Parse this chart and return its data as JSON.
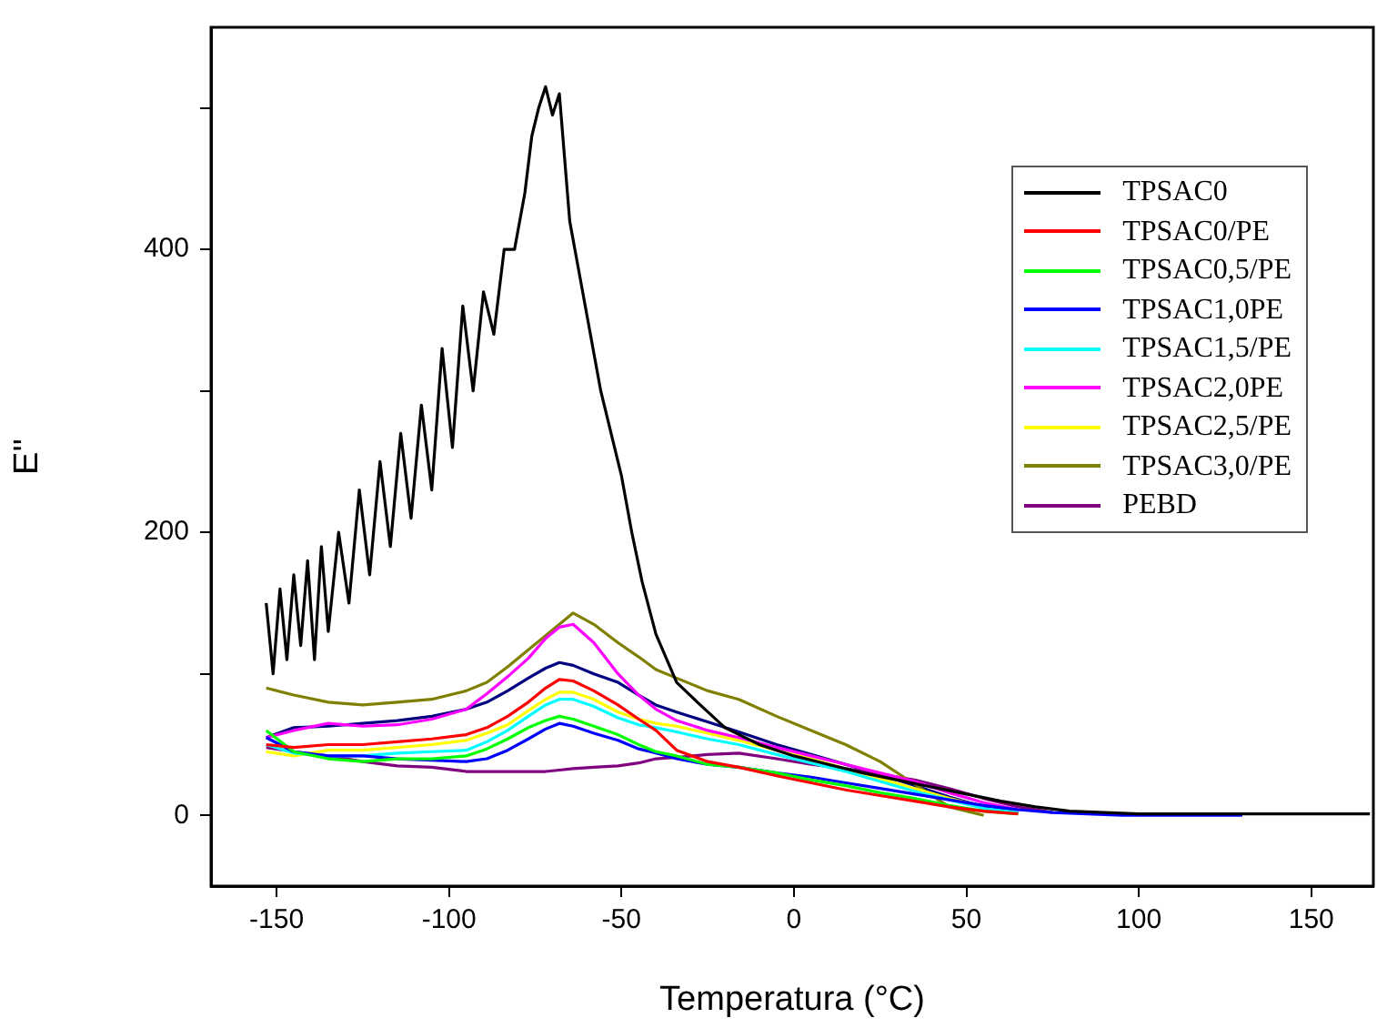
{
  "chart_data": {
    "type": "line",
    "xlabel": "Temperatura (°C)",
    "ylabel": "E''",
    "x": [
      -153,
      -145,
      -135,
      -125,
      -115,
      -105,
      -95,
      -89,
      -83,
      -77,
      -72,
      -68,
      -64,
      -58,
      -51,
      -45,
      -40,
      -34,
      -25,
      -16,
      -5,
      5,
      15,
      25,
      35,
      45,
      55,
      65,
      75,
      85,
      95,
      110,
      130
    ],
    "series": [
      {
        "name": "TPSAC0",
        "color": "#000000",
        "x": [
          -153,
          -151,
          -149,
          -147,
          -145,
          -143,
          -141,
          -139,
          -137,
          -135,
          -132,
          -129,
          -126,
          -123,
          -120,
          -117,
          -114,
          -111,
          -108,
          -105,
          -102,
          -99,
          -96,
          -93,
          -90,
          -87,
          -84,
          -81,
          -78,
          -76,
          -74,
          -72,
          -70,
          -68,
          -65,
          -62,
          -59,
          -56,
          -53,
          -50,
          -47,
          -44,
          -40,
          -34,
          -28,
          -20,
          -10,
          0,
          10,
          20,
          30,
          40,
          50,
          60,
          70,
          80,
          90,
          100,
          120,
          140,
          160,
          167
        ],
        "values": [
          150,
          100,
          160,
          110,
          170,
          120,
          180,
          110,
          190,
          130,
          200,
          150,
          230,
          170,
          250,
          190,
          270,
          210,
          290,
          230,
          330,
          260,
          360,
          300,
          370,
          340,
          400,
          400,
          440,
          480,
          500,
          515,
          495,
          510,
          420,
          380,
          340,
          300,
          270,
          240,
          200,
          165,
          128,
          94,
          80,
          62,
          50,
          42,
          36,
          30,
          25,
          20,
          15,
          10,
          6,
          3,
          2,
          1,
          1,
          1,
          1,
          1
        ]
      },
      {
        "name": "TPSAC0/PE",
        "color": "#ff0000",
        "values": [
          50,
          48,
          50,
          50,
          52,
          54,
          57,
          62,
          70,
          80,
          90,
          96,
          95,
          88,
          78,
          68,
          60,
          46,
          38,
          34,
          28,
          23,
          18,
          14,
          10,
          6,
          3,
          1,
          null,
          null,
          null,
          null,
          null
        ]
      },
      {
        "name": "TPSAC0,5/PE",
        "color": "#00ff00",
        "values": [
          60,
          45,
          40,
          38,
          40,
          40,
          42,
          47,
          54,
          62,
          67,
          70,
          68,
          63,
          57,
          50,
          45,
          42,
          36,
          34,
          30,
          25,
          21,
          16,
          12,
          7,
          3,
          1,
          null,
          null,
          null,
          null,
          null
        ]
      },
      {
        "name": "TPSAC1,0PE",
        "color": "#0000ff",
        "values": [
          55,
          45,
          42,
          42,
          40,
          39,
          38,
          40,
          46,
          54,
          61,
          65,
          63,
          58,
          53,
          47,
          44,
          40,
          36,
          34,
          30,
          27,
          23,
          19,
          15,
          11,
          7,
          4,
          2,
          1,
          0,
          0,
          0
        ]
      },
      {
        "name": "TPSAC1,5/PE",
        "color": "#00ffff",
        "values": [
          50,
          44,
          42,
          42,
          44,
          45,
          46,
          52,
          60,
          70,
          78,
          82,
          82,
          77,
          69,
          64,
          62,
          59,
          54,
          50,
          43,
          37,
          31,
          24,
          17,
          11,
          5,
          2,
          null,
          null,
          null,
          null,
          null
        ]
      },
      {
        "name": "TPSAC2,0PE",
        "color": "#ff00ff",
        "values": [
          55,
          60,
          65,
          63,
          64,
          68,
          75,
          86,
          98,
          111,
          125,
          133,
          135,
          122,
          100,
          85,
          75,
          67,
          60,
          55,
          48,
          42,
          36,
          30,
          24,
          16,
          9,
          4,
          null,
          null,
          null,
          null,
          null
        ]
      },
      {
        "name": "TPSAC2,5/PE",
        "color": "#ffff00",
        "values": [
          45,
          42,
          46,
          46,
          48,
          50,
          53,
          58,
          64,
          74,
          82,
          87,
          87,
          82,
          73,
          68,
          65,
          63,
          58,
          53,
          46,
          40,
          33,
          26,
          19,
          12,
          6,
          null,
          null,
          null,
          null,
          null,
          null
        ]
      },
      {
        "name": "TPSAC3,0/PE",
        "color": "#808000",
        "values": [
          90,
          85,
          80,
          78,
          80,
          82,
          88,
          94,
          105,
          117,
          127,
          135,
          143,
          135,
          122,
          112,
          103,
          97,
          88,
          82,
          70,
          60,
          50,
          38,
          22,
          6,
          0,
          null,
          null,
          null,
          null,
          null,
          null
        ]
      },
      {
        "name": "PEBD",
        "color": "#800080",
        "values": [
          48,
          45,
          42,
          38,
          35,
          34,
          31,
          31,
          31,
          31,
          31,
          32,
          33,
          34,
          35,
          37,
          40,
          41,
          43,
          44,
          40,
          36,
          33,
          29,
          25,
          19,
          12,
          6,
          2,
          null,
          null,
          null,
          null
        ]
      },
      {
        "color": "#000080",
        "values": [
          55,
          62,
          63,
          65,
          67,
          70,
          75,
          80,
          88,
          97,
          104,
          108,
          106,
          100,
          94,
          85,
          78,
          73,
          66,
          59,
          50,
          43,
          36,
          29,
          21,
          13,
          6,
          2,
          null,
          null,
          null,
          null,
          null
        ]
      }
    ],
    "xlim": [
      -169,
      168
    ],
    "ylim": [
      -50,
      557
    ],
    "xticks": [
      -150,
      -100,
      -50,
      0,
      50,
      100,
      150
    ],
    "yticks": [
      0,
      {
        "value": 100,
        "label": null
      },
      200,
      {
        "value": 300,
        "label": null
      },
      400,
      {
        "value": 500,
        "label": null
      }
    ],
    "grid": false,
    "legend": "top right",
    "marker": "none",
    "line_style": "solid"
  }
}
